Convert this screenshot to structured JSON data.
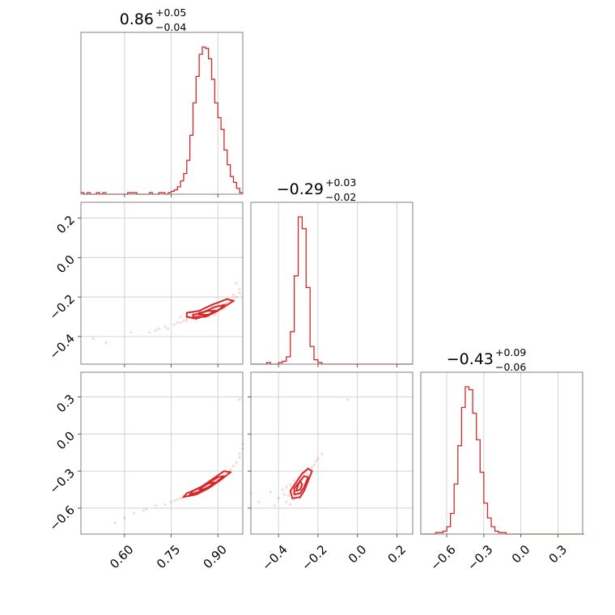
{
  "chart_data": {
    "type": "corner",
    "color": "#d62728",
    "parameters": [
      {
        "index": 0,
        "median": 0.86,
        "err_plus": 0.05,
        "err_minus": 0.04,
        "title_main": "0.86",
        "title_sup": "+0.05",
        "title_sub": "−0.04",
        "range": [
          0.46,
          0.98
        ],
        "ticks": [
          0.6,
          0.75,
          0.9
        ],
        "tick_labels": [
          "0.60",
          "0.75",
          "0.90"
        ]
      },
      {
        "index": 1,
        "median": -0.29,
        "err_plus": 0.03,
        "err_minus": 0.02,
        "title_main": "−0.29",
        "title_sup": "+0.03",
        "title_sub": "−0.02",
        "range": [
          -0.54,
          0.28
        ],
        "ticks": [
          -0.4,
          -0.2,
          0.0,
          0.2
        ],
        "tick_labels": [
          "−0.4",
          "−0.2",
          "0.0",
          "0.2"
        ]
      },
      {
        "index": 2,
        "median": -0.43,
        "err_plus": 0.09,
        "err_minus": 0.06,
        "title_main": "−0.43",
        "title_sup": "+0.09",
        "title_sub": "−0.06",
        "range": [
          -0.81,
          0.5
        ],
        "ticks": [
          -0.6,
          -0.3,
          0.0,
          0.3
        ],
        "tick_labels": [
          "−0.6",
          "−0.3",
          "0.0",
          "0.3"
        ]
      }
    ],
    "histograms": [
      {
        "param": 0,
        "x": [
          0.46,
          0.47,
          0.48,
          0.49,
          0.5,
          0.51,
          0.52,
          0.53,
          0.54,
          0.55,
          0.56,
          0.57,
          0.58,
          0.59,
          0.6,
          0.61,
          0.62,
          0.63,
          0.64,
          0.65,
          0.66,
          0.67,
          0.68,
          0.69,
          0.7,
          0.71,
          0.72,
          0.73,
          0.74,
          0.75,
          0.76,
          0.77,
          0.78,
          0.79,
          0.8,
          0.81,
          0.82,
          0.83,
          0.84,
          0.85,
          0.86,
          0.87,
          0.88,
          0.89,
          0.9,
          0.91,
          0.92,
          0.93,
          0.94,
          0.95,
          0.96,
          0.97
        ],
        "counts": [
          1,
          0,
          1,
          0,
          0,
          1,
          0,
          1,
          0,
          0,
          0,
          0,
          0,
          0,
          0,
          1,
          1,
          1,
          0,
          0,
          0,
          0,
          1,
          0,
          0,
          1,
          1,
          0,
          1,
          2,
          3,
          5,
          9,
          14,
          23,
          40,
          62,
          80,
          95,
          100,
          99,
          92,
          78,
          62,
          52,
          44,
          30,
          20,
          12,
          8,
          4,
          1
        ]
      },
      {
        "param": 1,
        "x": [
          -0.54,
          -0.52,
          -0.5,
          -0.48,
          -0.46,
          -0.44,
          -0.42,
          -0.4,
          -0.38,
          -0.36,
          -0.34,
          -0.32,
          -0.3,
          -0.28,
          -0.26,
          -0.24,
          -0.22,
          -0.2,
          -0.18,
          -0.16,
          -0.14,
          -0.12,
          -0.1,
          -0.08,
          -0.06,
          -0.04,
          -0.02,
          0.0,
          0.02,
          0.04,
          0.06,
          0.08,
          0.1,
          0.12,
          0.14,
          0.16,
          0.18,
          0.2,
          0.22,
          0.24,
          0.26
        ],
        "counts": [
          0,
          0,
          0,
          0,
          1,
          0,
          0,
          1,
          2,
          5,
          22,
          60,
          100,
          92,
          52,
          12,
          3,
          1,
          0,
          0,
          0,
          0,
          0,
          0,
          0,
          0,
          0,
          0,
          0,
          0,
          0,
          0,
          0,
          0,
          0,
          0,
          0,
          0,
          0,
          0,
          0
        ]
      },
      {
        "param": 2,
        "x": [
          -0.81,
          -0.78,
          -0.75,
          -0.72,
          -0.69,
          -0.66,
          -0.63,
          -0.6,
          -0.57,
          -0.54,
          -0.51,
          -0.48,
          -0.45,
          -0.42,
          -0.39,
          -0.36,
          -0.33,
          -0.3,
          -0.27,
          -0.24,
          -0.21,
          -0.18,
          -0.15,
          -0.12,
          -0.09,
          -0.06,
          -0.03,
          0.0,
          0.03,
          0.06,
          0.09,
          0.12,
          0.15,
          0.18,
          0.21,
          0.24,
          0.27,
          0.3,
          0.33,
          0.36,
          0.39,
          0.42,
          0.45,
          0.48
        ],
        "counts": [
          0,
          0,
          0,
          0,
          1,
          1,
          2,
          5,
          14,
          34,
          60,
          86,
          100,
          98,
          82,
          64,
          42,
          21,
          11,
          5,
          2,
          1,
          1,
          0,
          0,
          0,
          0,
          0,
          0,
          0,
          0,
          0,
          0,
          0,
          0,
          0,
          0,
          0,
          0,
          0,
          0,
          0,
          0,
          0
        ]
      }
    ],
    "pairs": [
      {
        "x_param": 0,
        "y_param": 1,
        "center": [
          0.85,
          -0.29
        ],
        "contours": [
          [
            [
              0.8,
              -0.3
            ],
            [
              0.83,
              -0.31
            ],
            [
              0.87,
              -0.29
            ],
            [
              0.91,
              -0.26
            ],
            [
              0.95,
              -0.22
            ],
            [
              0.93,
              -0.21
            ],
            [
              0.88,
              -0.24
            ],
            [
              0.84,
              -0.27
            ],
            [
              0.8,
              -0.28
            ]
          ],
          [
            [
              0.82,
              -0.3
            ],
            [
              0.86,
              -0.3
            ],
            [
              0.9,
              -0.27
            ],
            [
              0.92,
              -0.24
            ],
            [
              0.89,
              -0.25
            ],
            [
              0.85,
              -0.28
            ],
            [
              0.82,
              -0.29
            ]
          ],
          [
            [
              0.84,
              -0.29
            ],
            [
              0.87,
              -0.29
            ],
            [
              0.89,
              -0.27
            ],
            [
              0.87,
              -0.27
            ],
            [
              0.84,
              -0.28
            ]
          ]
        ],
        "samples": [
          [
            0.54,
            -0.43
          ],
          [
            0.5,
            -0.41
          ],
          [
            0.62,
            -0.38
          ],
          [
            0.71,
            -0.36
          ],
          [
            0.73,
            -0.35
          ],
          [
            0.76,
            -0.34
          ],
          [
            0.78,
            -0.33
          ],
          [
            0.79,
            -0.32
          ],
          [
            0.8,
            -0.31
          ],
          [
            0.81,
            -0.3
          ],
          [
            0.82,
            -0.31
          ],
          [
            0.83,
            -0.29
          ],
          [
            0.84,
            -0.3
          ],
          [
            0.85,
            -0.28
          ],
          [
            0.86,
            -0.29
          ],
          [
            0.87,
            -0.27
          ],
          [
            0.88,
            -0.28
          ],
          [
            0.89,
            -0.26
          ],
          [
            0.9,
            -0.26
          ],
          [
            0.91,
            -0.25
          ],
          [
            0.92,
            -0.24
          ],
          [
            0.93,
            -0.23
          ],
          [
            0.94,
            -0.22
          ],
          [
            0.95,
            -0.21
          ],
          [
            0.96,
            -0.2
          ],
          [
            0.97,
            -0.18
          ],
          [
            0.97,
            -0.16
          ],
          [
            0.96,
            -0.13
          ],
          [
            0.77,
            -0.33
          ],
          [
            0.8,
            -0.32
          ],
          [
            0.83,
            -0.31
          ],
          [
            0.86,
            -0.27
          ],
          [
            0.88,
            -0.25
          ],
          [
            0.9,
            -0.24
          ],
          [
            0.92,
            -0.26
          ],
          [
            0.78,
            -0.3
          ],
          [
            0.82,
            -0.28
          ],
          [
            0.85,
            -0.3
          ],
          [
            0.87,
            -0.3
          ],
          [
            0.89,
            -0.29
          ],
          [
            0.74,
            -0.36
          ],
          [
            0.7,
            -0.37
          ],
          [
            0.68,
            -0.38
          ],
          [
            0.93,
            -0.21
          ],
          [
            0.95,
            -0.19
          ]
        ]
      },
      {
        "x_param": 0,
        "y_param": 2,
        "center": [
          0.86,
          -0.43
        ],
        "contours": [
          [
            [
              0.79,
              -0.51
            ],
            [
              0.83,
              -0.49
            ],
            [
              0.87,
              -0.44
            ],
            [
              0.91,
              -0.37
            ],
            [
              0.94,
              -0.31
            ],
            [
              0.92,
              -0.3
            ],
            [
              0.88,
              -0.37
            ],
            [
              0.84,
              -0.44
            ],
            [
              0.8,
              -0.48
            ]
          ],
          [
            [
              0.81,
              -0.49
            ],
            [
              0.85,
              -0.46
            ],
            [
              0.89,
              -0.4
            ],
            [
              0.92,
              -0.34
            ],
            [
              0.9,
              -0.35
            ],
            [
              0.86,
              -0.41
            ],
            [
              0.82,
              -0.46
            ]
          ],
          [
            [
              0.84,
              -0.46
            ],
            [
              0.87,
              -0.43
            ],
            [
              0.89,
              -0.39
            ],
            [
              0.87,
              -0.4
            ],
            [
              0.85,
              -0.43
            ]
          ]
        ],
        "samples": [
          [
            0.57,
            -0.72
          ],
          [
            0.63,
            -0.64
          ],
          [
            0.67,
            -0.61
          ],
          [
            0.7,
            -0.58
          ],
          [
            0.73,
            -0.57
          ],
          [
            0.75,
            -0.55
          ],
          [
            0.77,
            -0.53
          ],
          [
            0.78,
            -0.52
          ],
          [
            0.8,
            -0.5
          ],
          [
            0.81,
            -0.49
          ],
          [
            0.82,
            -0.48
          ],
          [
            0.83,
            -0.47
          ],
          [
            0.84,
            -0.45
          ],
          [
            0.85,
            -0.44
          ],
          [
            0.86,
            -0.43
          ],
          [
            0.87,
            -0.42
          ],
          [
            0.88,
            -0.4
          ],
          [
            0.89,
            -0.38
          ],
          [
            0.9,
            -0.37
          ],
          [
            0.91,
            -0.35
          ],
          [
            0.92,
            -0.33
          ],
          [
            0.93,
            -0.31
          ],
          [
            0.94,
            -0.29
          ],
          [
            0.95,
            -0.26
          ],
          [
            0.96,
            -0.23
          ],
          [
            0.97,
            -0.19
          ],
          [
            0.97,
            -0.16
          ],
          [
            0.98,
            -0.12
          ],
          [
            0.98,
            -0.08
          ],
          [
            0.97,
            0.28
          ],
          [
            0.76,
            -0.54
          ],
          [
            0.79,
            -0.5
          ],
          [
            0.82,
            -0.46
          ],
          [
            0.85,
            -0.45
          ],
          [
            0.88,
            -0.42
          ],
          [
            0.91,
            -0.37
          ],
          [
            0.94,
            -0.31
          ],
          [
            0.6,
            -0.68
          ],
          [
            0.66,
            -0.62
          ]
        ]
      },
      {
        "x_param": 1,
        "y_param": 2,
        "center": [
          -0.29,
          -0.43
        ],
        "contours": [
          [
            [
              -0.33,
              -0.52
            ],
            [
              -0.29,
              -0.51
            ],
            [
              -0.27,
              -0.46
            ],
            [
              -0.25,
              -0.38
            ],
            [
              -0.23,
              -0.3
            ],
            [
              -0.25,
              -0.28
            ],
            [
              -0.28,
              -0.32
            ],
            [
              -0.31,
              -0.39
            ],
            [
              -0.34,
              -0.46
            ]
          ],
          [
            [
              -0.32,
              -0.49
            ],
            [
              -0.29,
              -0.48
            ],
            [
              -0.27,
              -0.43
            ],
            [
              -0.25,
              -0.35
            ],
            [
              -0.27,
              -0.34
            ],
            [
              -0.29,
              -0.38
            ],
            [
              -0.32,
              -0.44
            ]
          ],
          [
            [
              -0.31,
              -0.46
            ],
            [
              -0.29,
              -0.45
            ],
            [
              -0.28,
              -0.41
            ],
            [
              -0.29,
              -0.38
            ],
            [
              -0.3,
              -0.41
            ]
          ]
        ],
        "samples": [
          [
            -0.54,
            -0.48
          ],
          [
            -0.5,
            -0.55
          ],
          [
            -0.44,
            -0.47
          ],
          [
            -0.4,
            -0.52
          ],
          [
            -0.38,
            -0.45
          ],
          [
            -0.37,
            -0.49
          ],
          [
            -0.36,
            -0.43
          ],
          [
            -0.35,
            -0.5
          ],
          [
            -0.34,
            -0.41
          ],
          [
            -0.33,
            -0.47
          ],
          [
            -0.32,
            -0.38
          ],
          [
            -0.31,
            -0.44
          ],
          [
            -0.3,
            -0.36
          ],
          [
            -0.29,
            -0.42
          ],
          [
            -0.28,
            -0.33
          ],
          [
            -0.27,
            -0.4
          ],
          [
            -0.26,
            -0.31
          ],
          [
            -0.25,
            -0.36
          ],
          [
            -0.24,
            -0.29
          ],
          [
            -0.23,
            -0.27
          ],
          [
            -0.22,
            -0.25
          ],
          [
            -0.21,
            -0.22
          ],
          [
            -0.2,
            -0.2
          ],
          [
            -0.18,
            -0.16
          ],
          [
            -0.32,
            -0.53
          ],
          [
            -0.29,
            -0.52
          ],
          [
            -0.36,
            -0.55
          ],
          [
            -0.34,
            -0.57
          ],
          [
            -0.05,
            0.28
          ],
          [
            -0.42,
            -0.58
          ],
          [
            -0.3,
            -0.48
          ],
          [
            -0.27,
            -0.44
          ],
          [
            -0.25,
            -0.33
          ],
          [
            -0.33,
            -0.43
          ],
          [
            -0.28,
            -0.37
          ]
        ]
      }
    ]
  }
}
